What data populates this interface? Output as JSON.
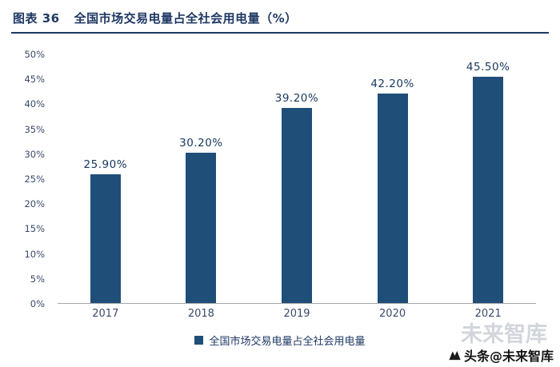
{
  "header": {
    "figure_label": "图表 36",
    "title": "全国市场交易电量占全社会用电量（%）"
  },
  "chart_data": {
    "type": "bar",
    "categories": [
      "2017",
      "2018",
      "2019",
      "2020",
      "2021"
    ],
    "values": [
      25.9,
      30.2,
      39.2,
      42.2,
      45.5
    ],
    "value_labels": [
      "25.90%",
      "30.20%",
      "39.20%",
      "42.20%",
      "45.50%"
    ],
    "title": "全国市场交易电量占全社会用电量（%）",
    "xlabel": "",
    "ylabel": "",
    "ylim": [
      0,
      50
    ],
    "ytick_step": 5,
    "ytick_labels": [
      "0%",
      "5%",
      "10%",
      "15%",
      "20%",
      "25%",
      "30%",
      "35%",
      "40%",
      "45%",
      "50%"
    ],
    "grid": false,
    "legend": {
      "position": "bottom",
      "entries": [
        "全国市场交易电量占全社会用电量"
      ]
    }
  },
  "footer": {
    "brand": "头条@未来智库",
    "watermark": "未来智库"
  },
  "colors": {
    "accent": "#1F3864",
    "bar": "#1F4E79",
    "axis_text": "#3A4A6B",
    "axis_line": "#A6A6A6"
  }
}
